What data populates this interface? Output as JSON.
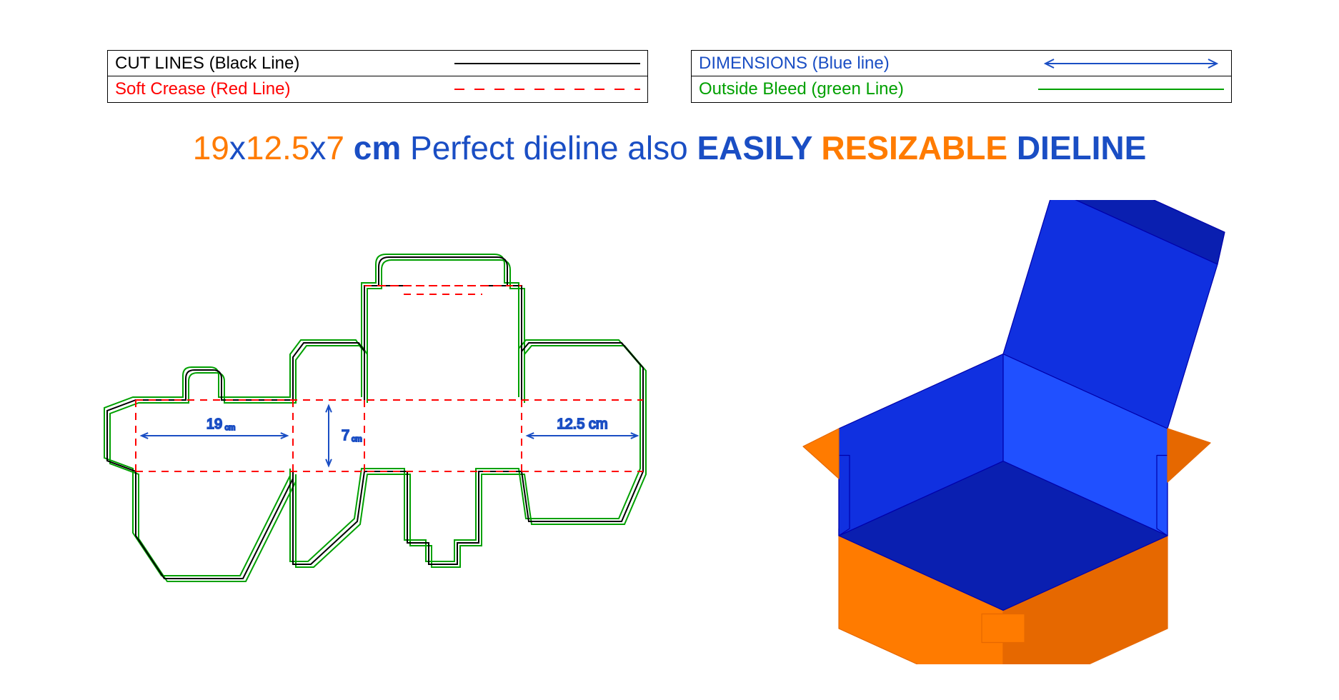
{
  "legend": {
    "left": [
      {
        "label": "CUT LINES (Black Line)",
        "color": "#000000",
        "style": "solid"
      },
      {
        "label": "Soft Crease (Red Line)",
        "color": "#ff0000",
        "style": "dashed"
      }
    ],
    "right": [
      {
        "label": "DIMENSIONS (Blue line)",
        "color": "#1a4ec4",
        "style": "arrow"
      },
      {
        "label": "Outside Bleed (green Line)",
        "color": "#00a000",
        "style": "solid"
      }
    ]
  },
  "headline": {
    "parts": [
      {
        "text": "19",
        "color": "#ff7b00"
      },
      {
        "text": "x",
        "color": "#1a4ec4"
      },
      {
        "text": "12.5",
        "color": "#ff7b00"
      },
      {
        "text": "x",
        "color": "#1a4ec4"
      },
      {
        "text": "7 ",
        "color": "#ff7b00"
      },
      {
        "text": "cm ",
        "color": "#1a4ec4",
        "weight": "bold"
      },
      {
        "text": "Perfect dieline also ",
        "color": "#1a4ec4"
      },
      {
        "text": "EASILY ",
        "color": "#1a4ec4",
        "weight": "bold"
      },
      {
        "text": "RESIZABLE ",
        "color": "#ff7b00",
        "weight": "bold"
      },
      {
        "text": "DIELINE",
        "color": "#1a4ec4",
        "weight": "bold"
      }
    ]
  },
  "dieline": {
    "type": "flowchart",
    "dims": {
      "length_label": "19",
      "length_unit": "cm",
      "height_label": "7",
      "height_unit": "cm",
      "width_label": "12.5 cm"
    },
    "colors": {
      "cut": "#000000",
      "crease": "#ff0000",
      "bleed": "#00a000",
      "dim": "#1a4ec4"
    },
    "stroke": {
      "cut": 2,
      "crease": 2,
      "bleed": 2,
      "dim": 2,
      "dash": "10,8"
    }
  },
  "box3d": {
    "colors": {
      "outer": "#ff7b00",
      "outer_dark": "#e66800",
      "inner": "#1030e0",
      "inner_dark": "#0a1fb0",
      "inner_light": "#2050ff",
      "edge": "#0000aa"
    }
  }
}
